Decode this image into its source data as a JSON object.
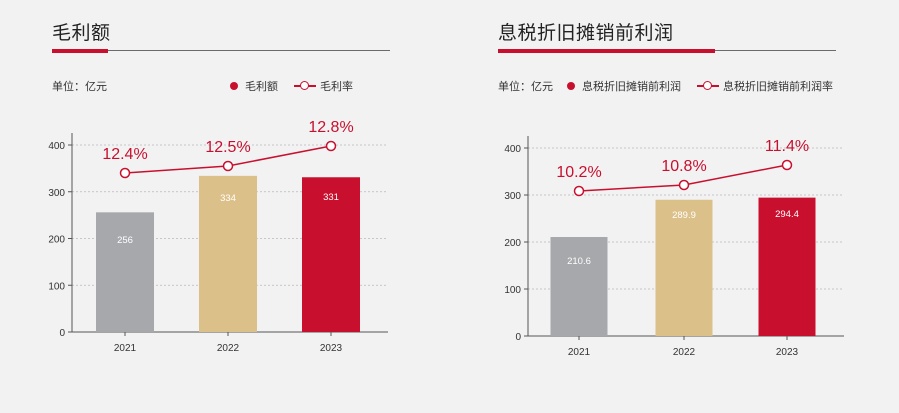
{
  "charts": [
    {
      "title": "毛利额",
      "unit_label": "单位：亿元",
      "legend": {
        "bar": "毛利额",
        "line": "毛利率"
      }
    },
    {
      "title": "息税折旧摊销前利润",
      "unit_label": "单位：亿元",
      "legend": {
        "bar": "息税折旧摊销前利润",
        "line": "息税折旧摊销前利润率"
      }
    }
  ],
  "colors": {
    "grey": "#a7a8ab",
    "gold": "#dcc08a",
    "red": "#c8102e",
    "line": "#c8102e"
  },
  "chart_data": [
    {
      "type": "bar",
      "title": "毛利额",
      "categories": [
        "2021",
        "2022",
        "2023"
      ],
      "series": [
        {
          "name": "毛利额",
          "values": [
            256,
            334,
            331
          ],
          "value_labels": [
            "256",
            "334",
            "331"
          ]
        },
        {
          "name": "毛利率",
          "type": "line",
          "values": [
            12.4,
            12.5,
            12.8
          ],
          "value_labels": [
            "12.4%",
            "12.5%",
            "12.8%"
          ]
        }
      ],
      "yticks": [
        0,
        100,
        200,
        300,
        400
      ],
      "ylim": [
        0,
        400
      ],
      "grid": "dashed-horizontal",
      "legend_position": "top-right"
    },
    {
      "type": "bar",
      "title": "息税折旧摊销前利润",
      "categories": [
        "2021",
        "2022",
        "2023"
      ],
      "series": [
        {
          "name": "息税折旧摊销前利润",
          "values": [
            210.6,
            289.9,
            294.4
          ],
          "value_labels": [
            "210.6",
            "289.9",
            "294.4"
          ]
        },
        {
          "name": "息税折旧摊销前利润率",
          "type": "line",
          "values": [
            10.2,
            10.8,
            11.4
          ],
          "value_labels": [
            "10.2%",
            "10.8%",
            "11.4%"
          ]
        }
      ],
      "yticks": [
        0,
        100,
        200,
        300,
        400
      ],
      "ylim": [
        0,
        400
      ],
      "grid": "dashed-horizontal",
      "legend_position": "top-right"
    }
  ]
}
